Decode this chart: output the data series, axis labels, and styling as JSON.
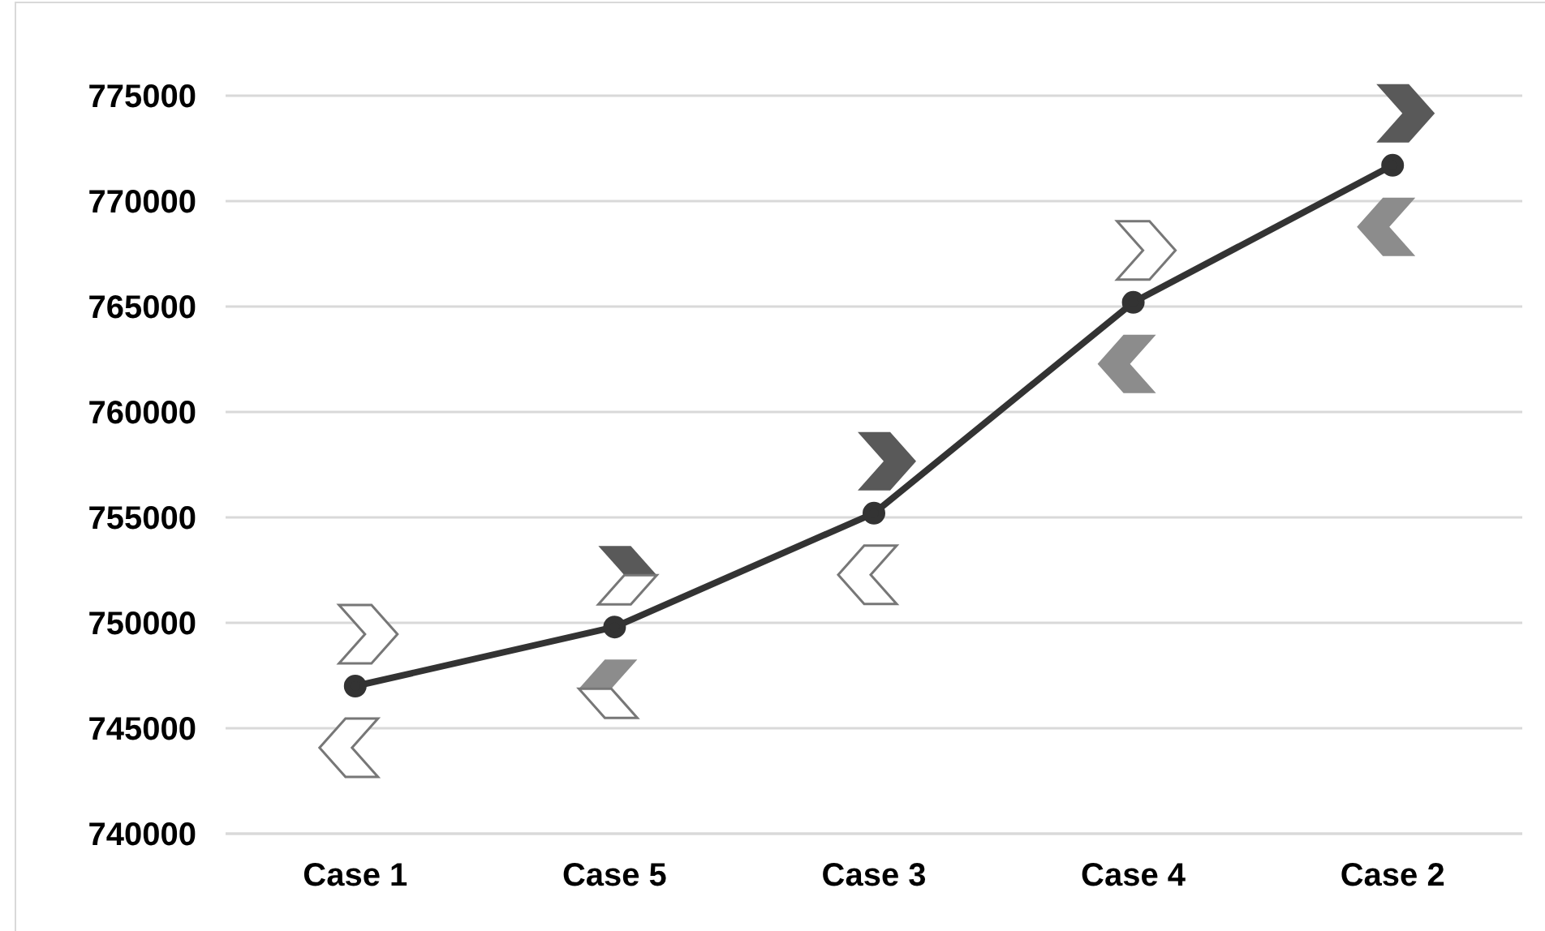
{
  "chart_data": {
    "type": "line",
    "categories": [
      "Case 1",
      "Case 5",
      "Case 3",
      "Case 4",
      "Case 2"
    ],
    "series": [
      {
        "color": "#333333",
        "values": [
          747000,
          749800,
          755200,
          765200,
          771700
        ]
      }
    ],
    "ylim": [
      740000,
      775000
    ],
    "yticks": [
      740000,
      745000,
      750000,
      755000,
      760000,
      765000,
      770000,
      775000
    ],
    "grid": "y",
    "marker": "circle",
    "line_style": "solid",
    "legend": false
  }
}
